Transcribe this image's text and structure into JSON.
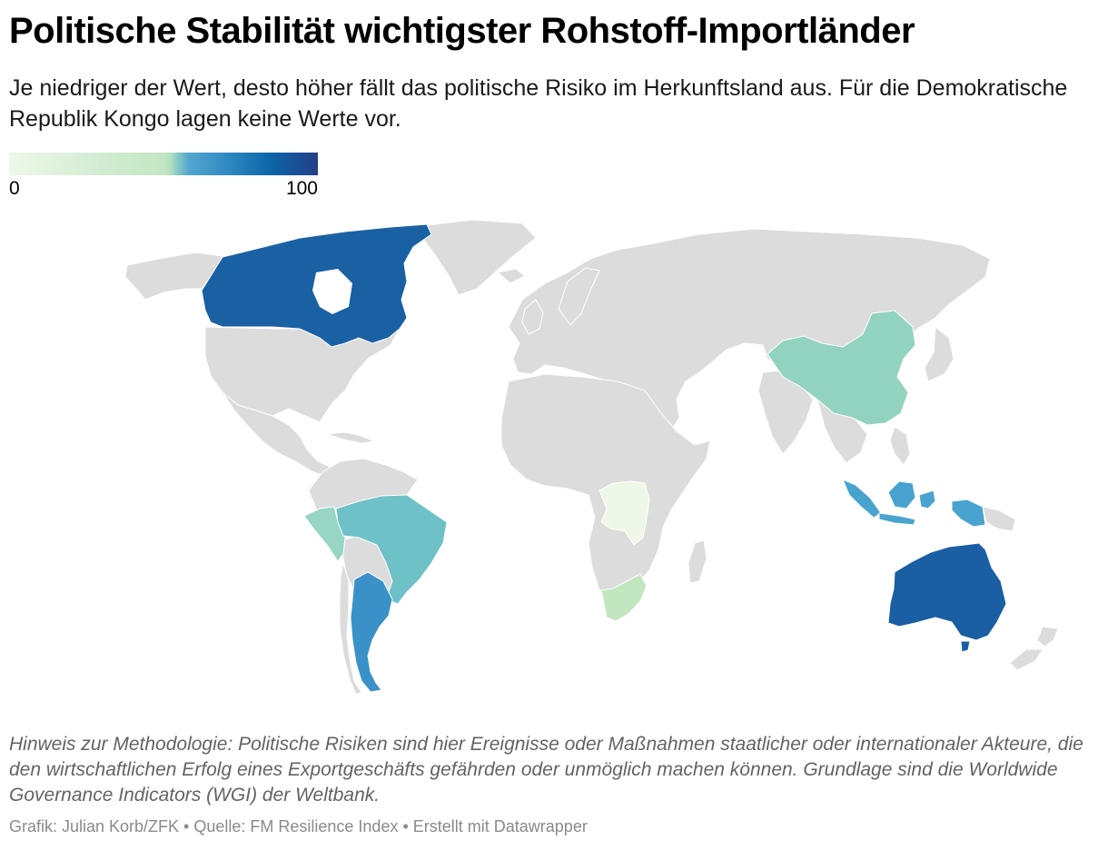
{
  "title": "Politische Stabilität wichtigster Rohstoff-Importländer",
  "subtitle": "Je niedriger der Wert, desto höher fällt das politische Risiko im Herkunftsland aus. Für die Demokratische Republik Kongo lagen keine Werte vor.",
  "legend": {
    "min_label": "0",
    "max_label": "100",
    "color_scale": [
      "#eff8ea",
      "#c3e7c3",
      "#52a8cf",
      "#0c64a7",
      "#253e87"
    ]
  },
  "map": {
    "no_data_color": "#dcdcdc",
    "highlighted_countries": [
      {
        "name": "Kanada",
        "color": "#1a61a4"
      },
      {
        "name": "China",
        "color": "#92d3c0"
      },
      {
        "name": "Peru",
        "color": "#97d6c4"
      },
      {
        "name": "Brasilien",
        "color": "#6ec1c6"
      },
      {
        "name": "Argentinien",
        "color": "#3a91c8"
      },
      {
        "name": "Demokratische Republik Kongo",
        "color": "#eef7e8"
      },
      {
        "name": "Südafrika",
        "color": "#c2e6c0"
      },
      {
        "name": "Indonesien",
        "color": "#48a4ce"
      },
      {
        "name": "Australien",
        "color": "#1a5ea3"
      }
    ]
  },
  "note": "Hinweis zur Methodologie: Politische Risiken sind hier Ereignisse oder Maßnahmen staatlicher oder internationaler Akteure, die den wirtschaftlichen Erfolg eines Exportgeschäfts gefährden oder unmöglich machen können. Grundlage sind die Worldwide Governance Indicators (WGI) der Weltbank.",
  "credits": "Grafik: Julian Korb/ZFK • Quelle: FM Resilience Index • Erstellt mit Datawrapper"
}
